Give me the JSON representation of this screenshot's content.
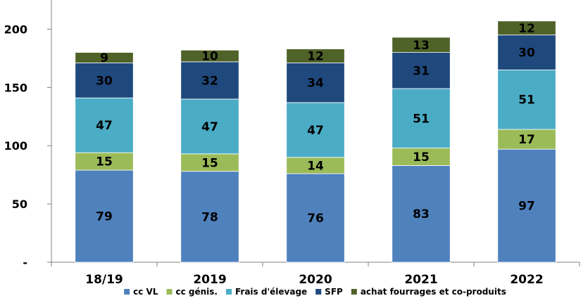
{
  "chart_data": {
    "type": "bar",
    "stacked": true,
    "categories": [
      "18/19",
      "2019",
      "2020",
      "2021",
      "2022"
    ],
    "series": [
      {
        "name": "cc VL",
        "color": "#4F81BD",
        "values": [
          79,
          78,
          76,
          83,
          97
        ]
      },
      {
        "name": "cc génis.",
        "color": "#9BBB59",
        "values": [
          15,
          15,
          14,
          15,
          17
        ]
      },
      {
        "name": "Frais d'élevage",
        "color": "#4BACC6",
        "values": [
          47,
          47,
          47,
          51,
          51
        ]
      },
      {
        "name": "SFP",
        "color": "#1F497D",
        "values": [
          30,
          32,
          34,
          31,
          30
        ]
      },
      {
        "name": "achat fourrages et co-produits",
        "color": "#4F6228",
        "values": [
          9,
          10,
          12,
          13,
          12
        ]
      }
    ],
    "y_ticks": [
      {
        "value": 0,
        "label": "-"
      },
      {
        "value": 50,
        "label": "50"
      },
      {
        "value": 100,
        "label": "100"
      },
      {
        "value": 150,
        "label": "150"
      },
      {
        "value": 200,
        "label": "200"
      }
    ],
    "ylim": [
      0,
      225
    ],
    "grid": false,
    "legend_position": "bottom",
    "title": "",
    "xlabel": "",
    "ylabel": ""
  }
}
